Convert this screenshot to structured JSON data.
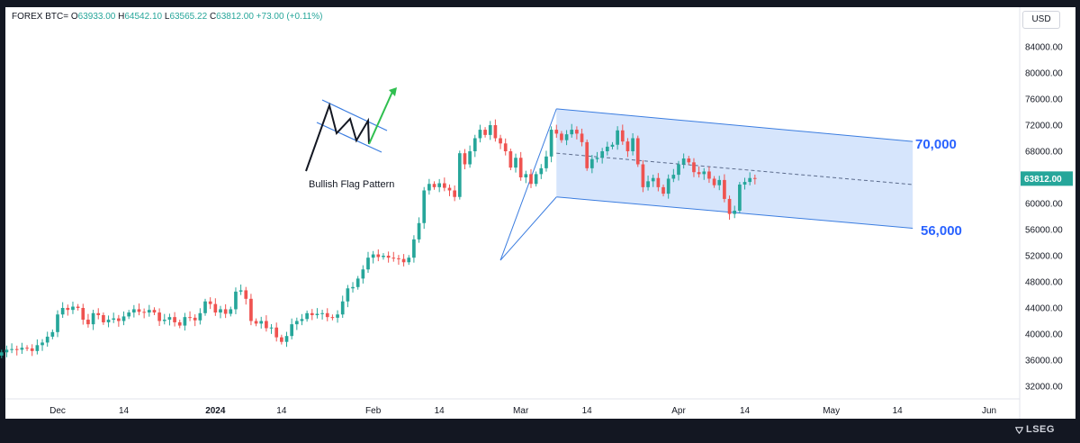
{
  "header": {
    "symbol": "FOREX BTC=",
    "open_label": "O",
    "open": "63933.00",
    "high_label": "H",
    "high": "64542.10",
    "low_label": "L",
    "low": "63565.22",
    "close_label": "C",
    "close": "63812.00",
    "change": "+73.00 (+0.11%)",
    "currency": "USD"
  },
  "brand": {
    "name": "LSEG",
    "icon": "lseg-logo-icon"
  },
  "colors": {
    "up": "#26a69a",
    "down": "#ef5350",
    "channel_fill": "#cfe0fb",
    "channel_line": "#3b7de0",
    "annotation": "#2962ff",
    "last_price_bg": "#26a69a"
  },
  "chart_data": {
    "type": "candlestick",
    "y_axis": {
      "ticks": [
        84000,
        80000,
        76000,
        72000,
        68000,
        64000,
        60000,
        56000,
        52000,
        48000,
        44000,
        40000,
        36000,
        32000
      ],
      "tick_labels": [
        "84000.00",
        "80000.00",
        "76000.00",
        "72000.00",
        "68000.00",
        "64000.00",
        "60000.00",
        "56000.00",
        "52000.00",
        "48000.00",
        "44000.00",
        "40000.00",
        "36000.00",
        "32000.00"
      ],
      "range": [
        30000,
        88000
      ],
      "position": "right"
    },
    "x_axis": {
      "tick_labels": [
        "Dec",
        "14",
        "2024",
        "14",
        "Feb",
        "14",
        "Mar",
        "14",
        "Apr",
        "14",
        "May",
        "14",
        "Jun"
      ],
      "tick_dates": [
        "2023-12-01",
        "2023-12-14",
        "2024-01-01",
        "2024-01-14",
        "2024-02-01",
        "2024-02-14",
        "2024-03-01",
        "2024-03-14",
        "2024-04-01",
        "2024-04-14",
        "2024-05-01",
        "2024-05-14",
        "2024-06-01"
      ],
      "range": [
        "2023-11-20",
        "2024-06-10"
      ]
    },
    "last_price": "63812.00",
    "closes": [
      37200,
      37600,
      37700,
      37600,
      37900,
      37800,
      37400,
      38300,
      38700,
      39600,
      40300,
      43000,
      44000,
      43700,
      44200,
      44000,
      42200,
      41500,
      43200,
      42900,
      41800,
      42200,
      42400,
      42000,
      42700,
      43300,
      43800,
      43400,
      43300,
      43700,
      43300,
      42000,
      42200,
      42600,
      41800,
      41300,
      42600,
      42500,
      42100,
      43200,
      45000,
      44600,
      43300,
      43800,
      43100,
      43800,
      46500,
      46700,
      45400,
      42000,
      41600,
      42000,
      40900,
      41000,
      39500,
      38800,
      39700,
      41500,
      42000,
      42300,
      43200,
      42900,
      43100,
      43200,
      42600,
      42500,
      43000,
      45000,
      47000,
      47200,
      48500,
      49900,
      51700,
      52200,
      51800,
      52000,
      51700,
      51600,
      51500,
      51000,
      51700,
      54500,
      57000,
      62000,
      63000,
      62500,
      63100,
      62400,
      62000,
      61000,
      67700,
      66000,
      68000,
      70000,
      71300,
      70500,
      72000,
      70000,
      69200,
      68000,
      65500,
      67000,
      64000,
      64500,
      63000,
      64500,
      65400,
      67200,
      71300,
      70700,
      69700,
      70600,
      71300,
      70700,
      69400,
      65400,
      66800,
      67000,
      68000,
      68700,
      69000,
      71200,
      69500,
      68000,
      70000,
      66000,
      62500,
      63400,
      63900,
      62500,
      61500,
      63800,
      64400,
      66000,
      66900,
      66300,
      64800,
      64500,
      64900,
      63800,
      62800,
      63600,
      60700,
      58400,
      58900,
      62900,
      63300,
      63900,
      63800
    ],
    "patterns": {
      "title": "Bullish Flag Pattern",
      "upper_target": "70,000",
      "lower_target": "56,000"
    },
    "channel": {
      "start_date": "2024-03-08",
      "end_date": "2024-05-17",
      "upper": [
        74500,
        69500
      ],
      "lower": [
        61000,
        56200
      ],
      "mid": [
        67700,
        62900
      ]
    }
  }
}
